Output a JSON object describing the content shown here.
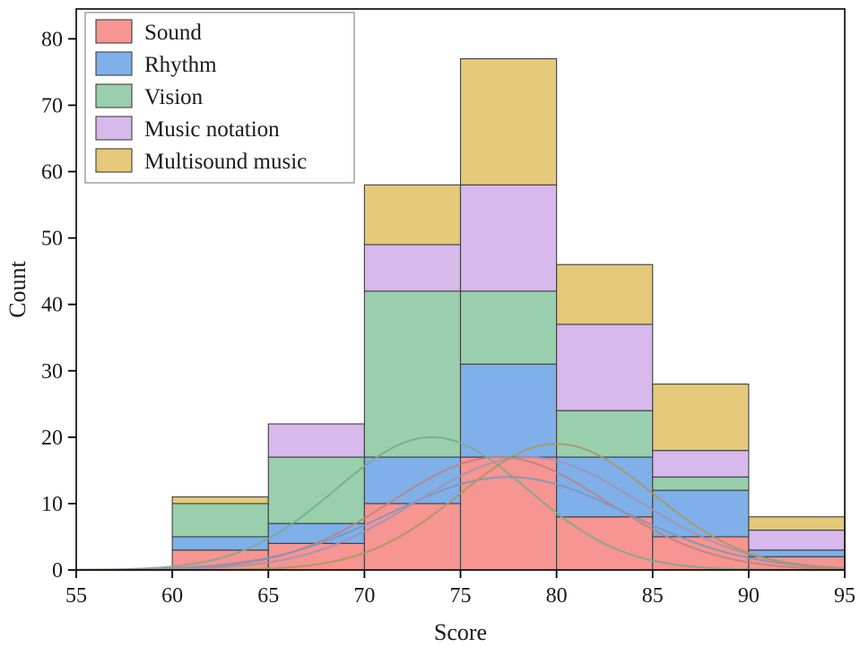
{
  "chart_data": {
    "type": "bar",
    "subtype": "stacked-histogram-with-distribution-curves",
    "title": "",
    "xlabel": "Score",
    "ylabel": "Count",
    "xlim": [
      55,
      95
    ],
    "ylim": [
      0,
      84.5
    ],
    "xticks": [
      55,
      60,
      65,
      70,
      75,
      80,
      85,
      90,
      95
    ],
    "yticks": [
      0,
      10,
      20,
      30,
      40,
      50,
      60,
      70,
      80
    ],
    "bin_edges": [
      60,
      65,
      70,
      75,
      80,
      85,
      90,
      95
    ],
    "grid": false,
    "legend_position": "top-left",
    "bar_edge_color": "#3f3f3f",
    "axis_color": "#000000",
    "series": [
      {
        "name": "Sound",
        "color": "#F58C88",
        "curve_color": "#bf837f",
        "values": [
          3,
          4,
          10,
          17,
          8,
          5,
          2
        ],
        "curve": {
          "mean": 77.0,
          "sd": 5.6,
          "peak": 17
        }
      },
      {
        "name": "Rhythm",
        "color": "#74A9E8",
        "curve_color": "#8096b8",
        "values": [
          2,
          3,
          7,
          14,
          9,
          7,
          1
        ],
        "curve": {
          "mean": 77.5,
          "sd": 6.2,
          "peak": 14
        }
      },
      {
        "name": "Vision",
        "color": "#90CBA6",
        "curve_color": "#7fa98c",
        "values": [
          5,
          10,
          25,
          11,
          7,
          2,
          0
        ],
        "curve": {
          "mean": 73.5,
          "sd": 5.0,
          "peak": 20
        }
      },
      {
        "name": "Music notation",
        "color": "#D4B3EA",
        "curve_color": "#a392b6",
        "values": [
          0,
          5,
          7,
          16,
          13,
          4,
          3
        ],
        "curve": {
          "mean": 78.5,
          "sd": 5.8,
          "peak": 17
        }
      },
      {
        "name": "Multisound music",
        "color": "#E3C46C",
        "curve_color": "#a9985f",
        "values": [
          1,
          0,
          9,
          19,
          9,
          10,
          2
        ],
        "curve": {
          "mean": 80.0,
          "sd": 5.0,
          "peak": 19
        }
      }
    ],
    "stacked_totals": [
      11,
      22,
      58,
      77,
      46,
      28,
      8
    ]
  }
}
